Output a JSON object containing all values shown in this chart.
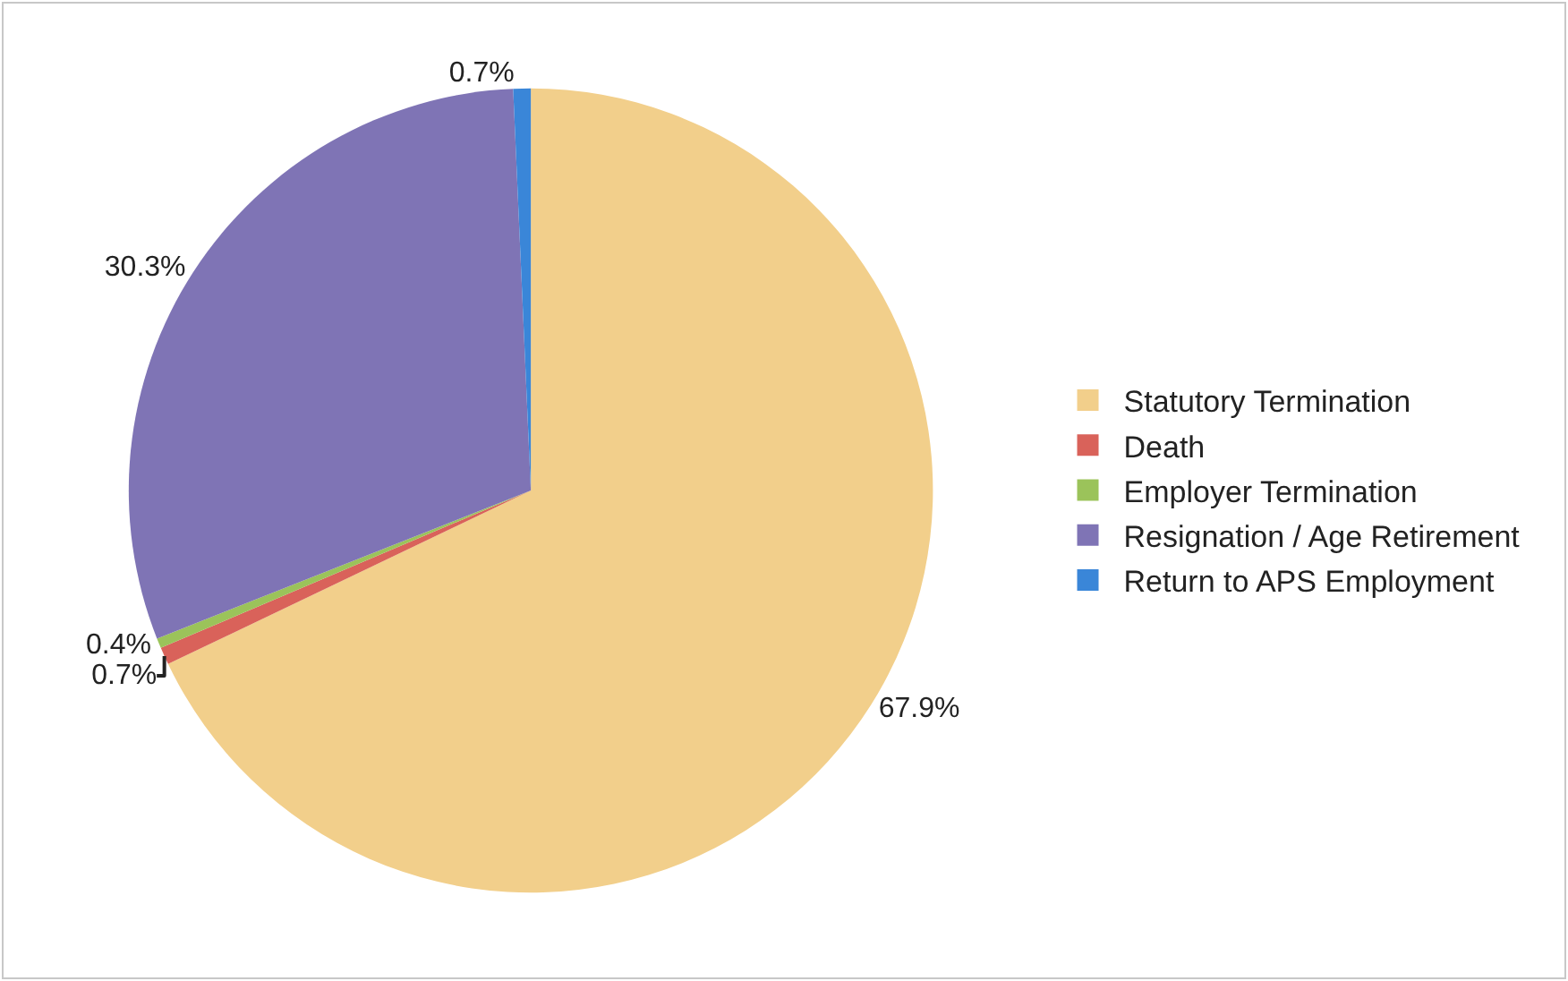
{
  "chart_data": {
    "type": "pie",
    "categories": [
      "Statutory Termination",
      "Death",
      "Employer Termination",
      "Resignation / Age Retirement",
      "Return to APS Employment"
    ],
    "values": [
      67.9,
      0.7,
      0.4,
      30.3,
      0.7
    ],
    "value_labels": [
      "67.9%",
      "0.7%",
      "0.4%",
      "30.3%",
      "0.7%"
    ],
    "colors": [
      "#f2cf8b",
      "#d9625a",
      "#9bc35a",
      "#7f74b5",
      "#3a86d8"
    ],
    "legend": "right"
  }
}
